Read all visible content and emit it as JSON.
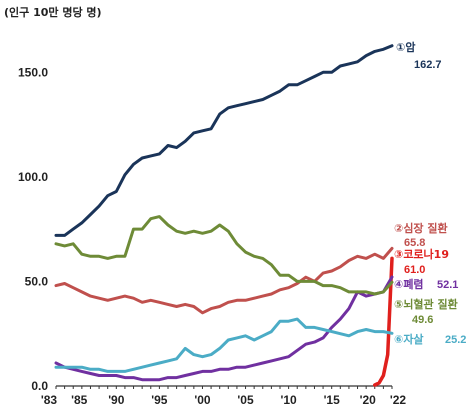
{
  "chart_data": {
    "type": "line",
    "unit_label": "(인구 10만 명당 명)",
    "xlabel": "",
    "ylabel": "",
    "ylim": [
      0,
      175
    ],
    "yticks": [
      0,
      50,
      100,
      150
    ],
    "ytick_labels": [
      "0.0",
      "50.0",
      "100.0",
      "150.0"
    ],
    "xlim": [
      1983,
      2022
    ],
    "xticks": [
      1983,
      1985,
      1990,
      1995,
      2000,
      2005,
      2010,
      2015,
      2020,
      2022
    ],
    "xtick_labels": [
      "'83",
      "'85",
      "'90",
      "'95",
      "'00",
      "'05",
      "'10",
      "'15",
      "'20",
      "'22"
    ],
    "grid": false,
    "legend": "right (inline labels)",
    "series": [
      {
        "name": "①암",
        "value_label": "162.7",
        "color": "#1a3459",
        "x": [
          1983,
          1984,
          1985,
          1986,
          1987,
          1988,
          1989,
          1990,
          1991,
          1992,
          1993,
          1994,
          1995,
          1996,
          1997,
          1998,
          1999,
          2000,
          2001,
          2002,
          2003,
          2004,
          2005,
          2006,
          2007,
          2008,
          2009,
          2010,
          2011,
          2012,
          2013,
          2014,
          2015,
          2016,
          2017,
          2018,
          2019,
          2020,
          2021,
          2022
        ],
        "values": [
          72,
          72,
          75,
          78,
          82,
          86,
          91,
          93,
          101,
          106,
          109,
          110,
          111,
          115,
          114,
          117,
          121,
          122,
          123,
          130,
          133,
          134,
          135,
          136,
          137,
          139,
          141,
          144,
          144,
          146,
          148,
          150,
          150,
          153,
          154,
          155,
          158,
          160,
          161,
          162.7
        ]
      },
      {
        "name": "②심장 질환",
        "value_label": "65.8",
        "color": "#c0504d",
        "x": [
          1983,
          1984,
          1985,
          1986,
          1987,
          1988,
          1989,
          1990,
          1991,
          1992,
          1993,
          1994,
          1995,
          1996,
          1997,
          1998,
          1999,
          2000,
          2001,
          2002,
          2003,
          2004,
          2005,
          2006,
          2007,
          2008,
          2009,
          2010,
          2011,
          2012,
          2013,
          2014,
          2015,
          2016,
          2017,
          2018,
          2019,
          2020,
          2021,
          2022
        ],
        "values": [
          48,
          49,
          47,
          45,
          43,
          42,
          41,
          42,
          43,
          42,
          40,
          41,
          40,
          39,
          38,
          39,
          38,
          35,
          37,
          38,
          40,
          41,
          41,
          42,
          43,
          44,
          46,
          47,
          49,
          52,
          50,
          54,
          55,
          57,
          60,
          62,
          61,
          63,
          61,
          65.8
        ]
      },
      {
        "name": "③코로나19",
        "value_label": "61.0",
        "color": "#e0201d",
        "x": [
          2020,
          2020.5,
          2021,
          2021.5,
          2022
        ],
        "values": [
          0.5,
          1.5,
          5,
          15,
          61.0
        ]
      },
      {
        "name": "④폐렴",
        "value_label": "52.1",
        "color": "#7030a0",
        "x": [
          1983,
          1984,
          1985,
          1986,
          1987,
          1988,
          1989,
          1990,
          1991,
          1992,
          1993,
          1994,
          1995,
          1996,
          1997,
          1998,
          1999,
          2000,
          2001,
          2002,
          2003,
          2004,
          2005,
          2006,
          2007,
          2008,
          2009,
          2010,
          2011,
          2012,
          2013,
          2014,
          2015,
          2016,
          2017,
          2018,
          2019,
          2020,
          2021,
          2022
        ],
        "values": [
          11,
          9,
          8,
          7,
          6,
          5,
          5,
          5,
          4,
          4,
          3,
          3,
          3,
          4,
          4,
          5,
          6,
          7,
          7,
          8,
          8,
          9,
          9,
          10,
          11,
          12,
          13,
          14,
          17,
          20,
          21,
          23,
          28,
          32,
          37,
          45,
          43,
          44,
          45,
          52.1
        ]
      },
      {
        "name": "⑤뇌혈관 질환",
        "value_label": "49.6",
        "color": "#6e8b37",
        "x": [
          1983,
          1984,
          1985,
          1986,
          1987,
          1988,
          1989,
          1990,
          1991,
          1992,
          1993,
          1994,
          1995,
          1996,
          1997,
          1998,
          1999,
          2000,
          2001,
          2002,
          2003,
          2004,
          2005,
          2006,
          2007,
          2008,
          2009,
          2010,
          2011,
          2012,
          2013,
          2014,
          2015,
          2016,
          2017,
          2018,
          2019,
          2020,
          2021,
          2022
        ],
        "values": [
          68,
          67,
          68,
          63,
          62,
          62,
          61,
          62,
          62,
          75,
          75,
          80,
          81,
          77,
          74,
          73,
          74,
          73,
          74,
          77,
          74,
          68,
          64,
          62,
          61,
          58,
          53,
          53,
          50,
          50,
          50,
          48,
          48,
          47,
          45,
          45,
          45,
          44,
          45,
          49.6
        ]
      },
      {
        "name": "⑥자살",
        "value_label": "25.2",
        "color": "#4bacc6",
        "x": [
          1983,
          1984,
          1985,
          1986,
          1987,
          1988,
          1989,
          1990,
          1991,
          1992,
          1993,
          1994,
          1995,
          1996,
          1997,
          1998,
          1999,
          2000,
          2001,
          2002,
          2003,
          2004,
          2005,
          2006,
          2007,
          2008,
          2009,
          2010,
          2011,
          2012,
          2013,
          2014,
          2015,
          2016,
          2017,
          2018,
          2019,
          2020,
          2021,
          2022
        ],
        "values": [
          9,
          9,
          9,
          9,
          8,
          8,
          7,
          7,
          7,
          8,
          9,
          10,
          11,
          12,
          13,
          18,
          15,
          14,
          15,
          18,
          22,
          23,
          24,
          22,
          24,
          26,
          31,
          31,
          32,
          28,
          28,
          27,
          26,
          25,
          24,
          26,
          27,
          26,
          26,
          25.2
        ]
      }
    ]
  }
}
